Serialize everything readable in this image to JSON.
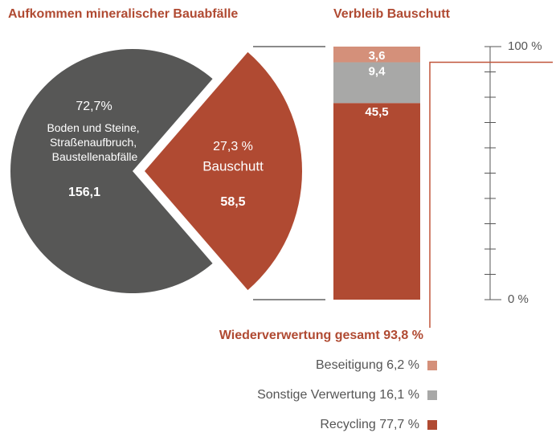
{
  "chart_data": [
    {
      "type": "pie",
      "title": "Aufkommen mineralischer Bauabfälle",
      "categories": [
        "Boden und Steine, Straßenaufbruch, Baustellenabfälle",
        "Bauschutt"
      ],
      "values": [
        156.1,
        58.5
      ],
      "value_labels": [
        "156,1",
        "58,5"
      ],
      "percents": [
        72.7,
        27.3
      ],
      "percent_labels": [
        "72,7%",
        "27,3 %"
      ],
      "colors": [
        "#575756",
        "#b04a32"
      ]
    },
    {
      "type": "stacked_bar",
      "title": "Verbleib Bauschutt",
      "categories": [
        null
      ],
      "series": [
        {
          "name": "Beseitigung",
          "color": "#d4907a",
          "values": [
            6.2
          ],
          "value_labels": [
            "6,2 %"
          ],
          "amounts": [
            3.6
          ],
          "amount_labels": [
            "3,6"
          ]
        },
        {
          "name": "Sonstige Verwertung",
          "color": "#a8a8a7",
          "values": [
            16.1
          ],
          "value_labels": [
            "16,1 %"
          ],
          "amounts": [
            9.4
          ],
          "amount_labels": [
            "9,4"
          ]
        },
        {
          "name": "Recycling",
          "color": "#b04a32",
          "values": [
            77.7
          ],
          "value_labels": [
            "77,7 %"
          ],
          "amounts": [
            45.5
          ],
          "amount_labels": [
            "45,5"
          ]
        }
      ],
      "ylim": [
        0,
        100
      ],
      "yticks": [
        {
          "value": 0,
          "label": "0 %"
        },
        {
          "value": 100,
          "label": "100 %"
        }
      ],
      "minor_yticks": [
        10,
        20,
        30,
        40,
        50,
        60,
        70,
        80,
        90
      ],
      "annotation": {
        "text": "Wiederverwertung gesamt",
        "value": 93.8,
        "label": "93,8 %"
      }
    }
  ]
}
